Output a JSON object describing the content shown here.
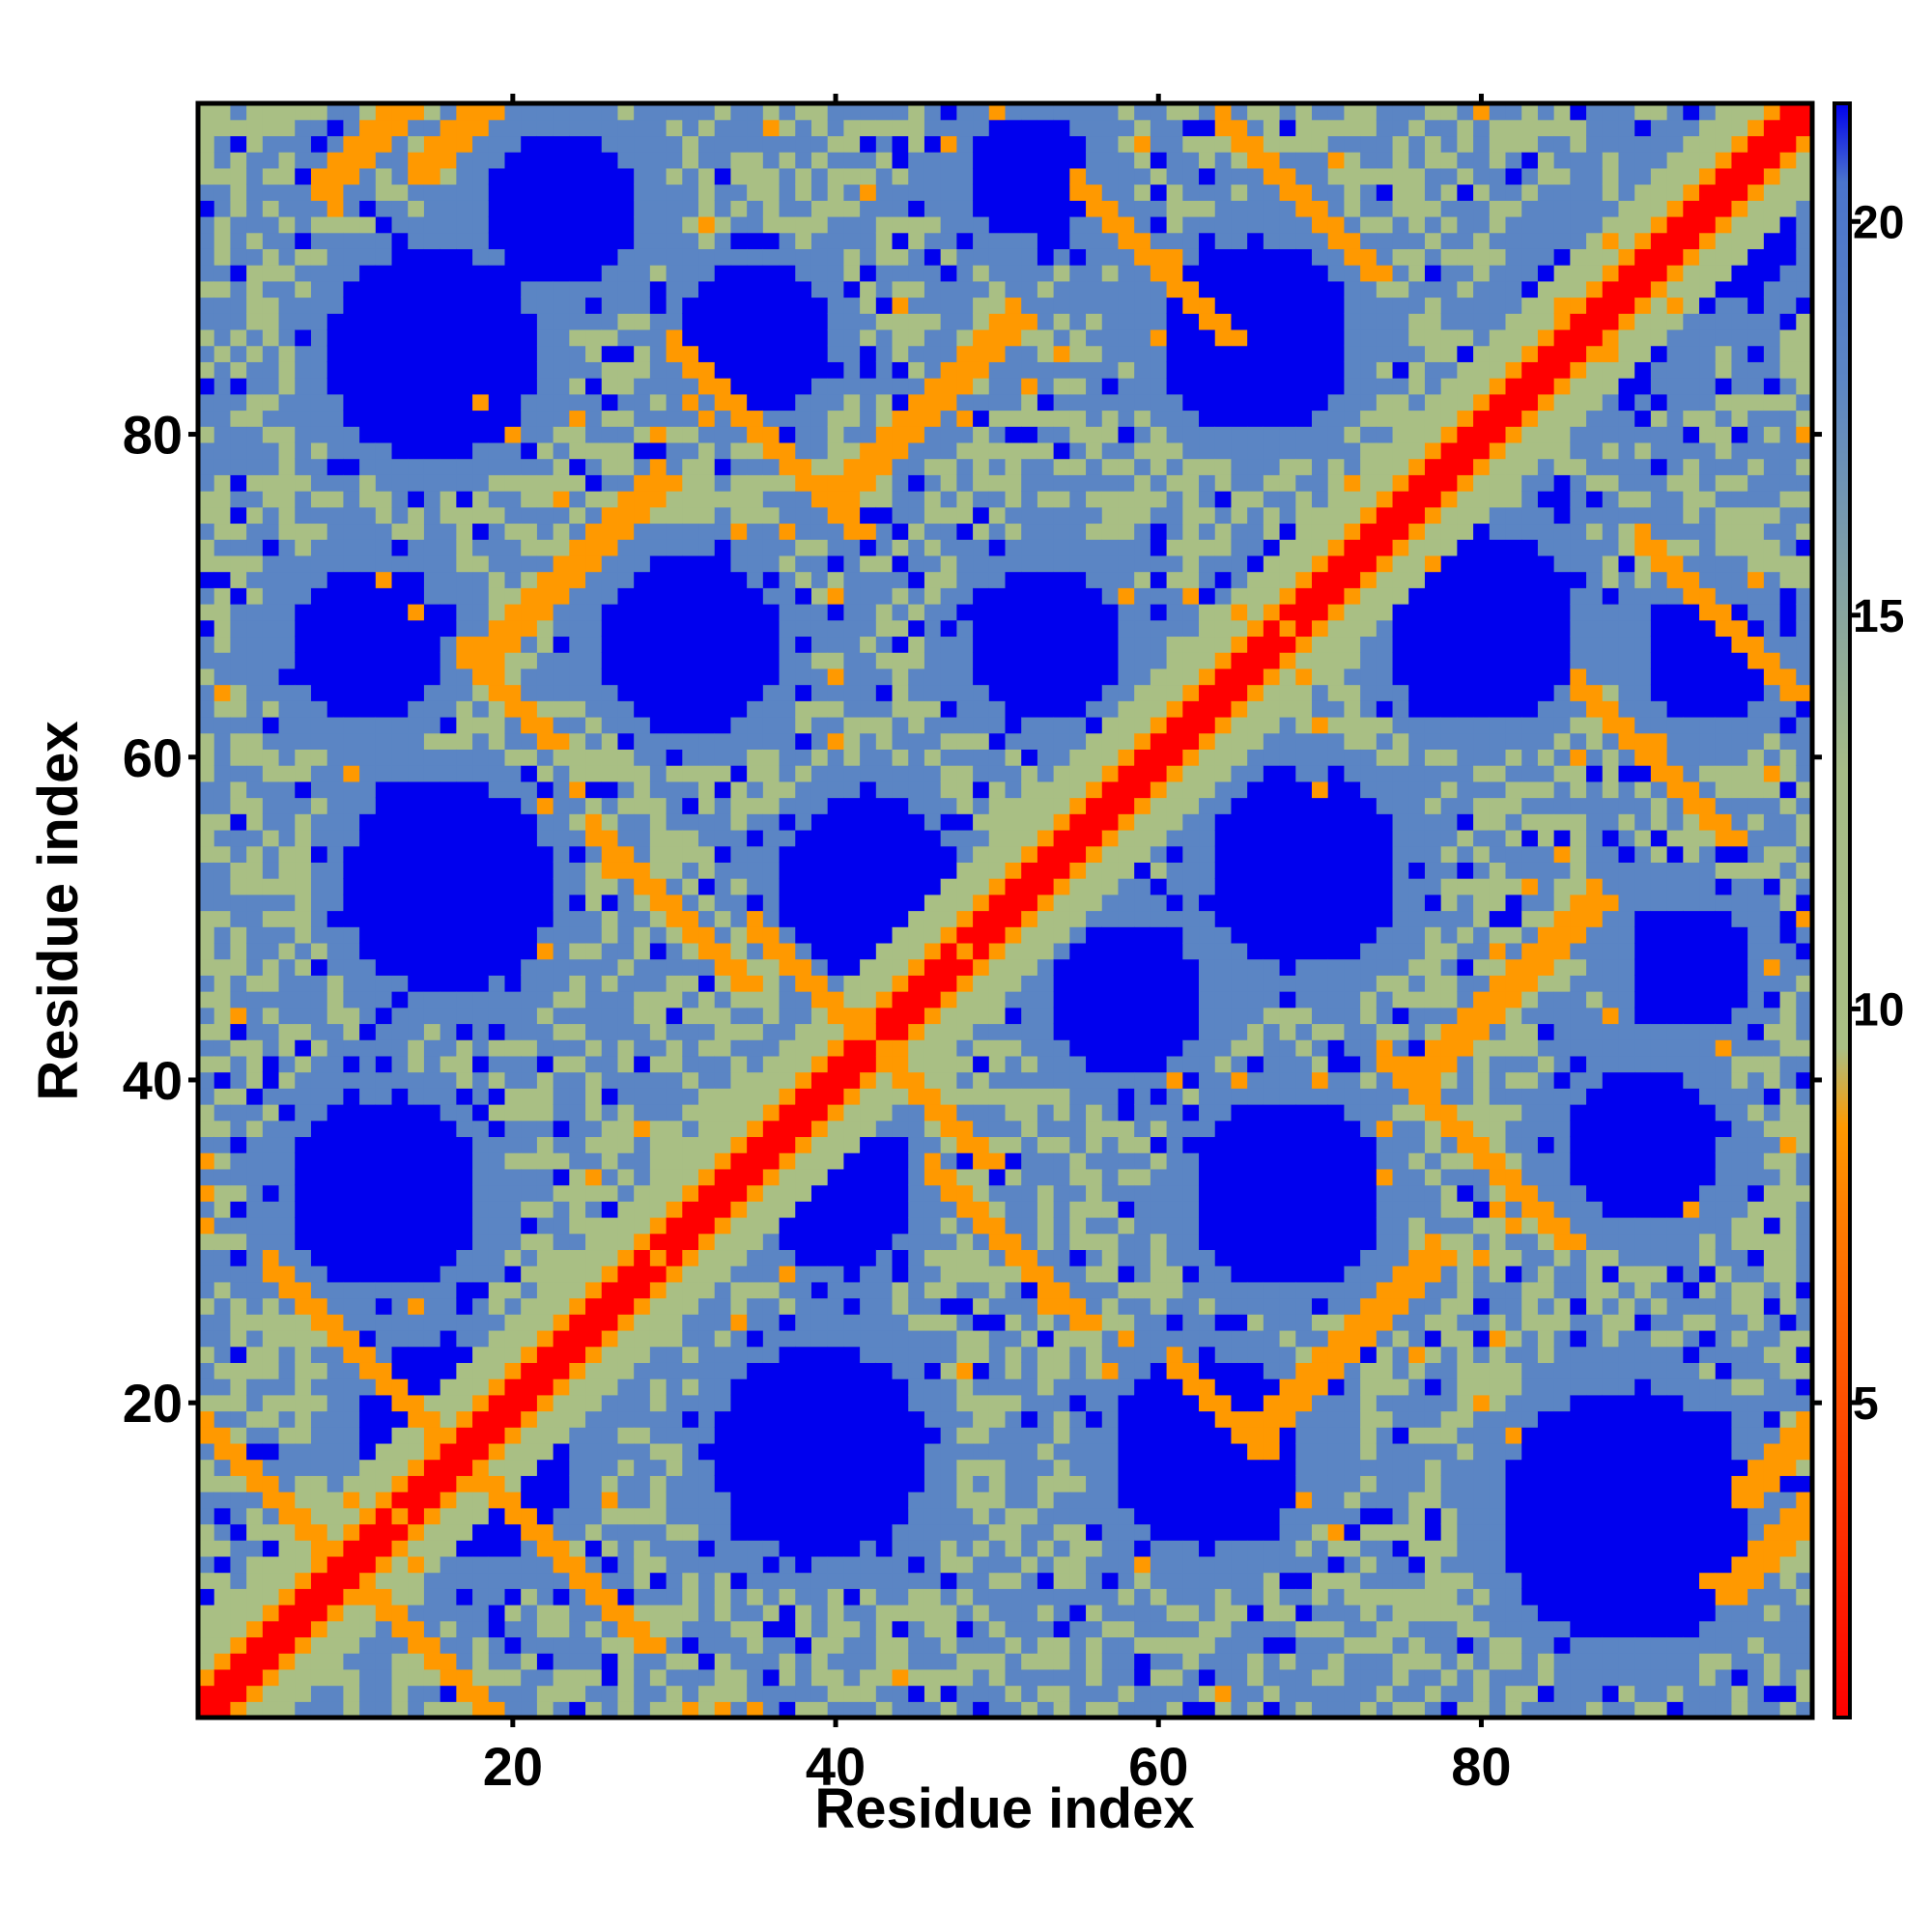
{
  "chart_data": {
    "type": "heatmap",
    "title": "",
    "xlabel": "Residue index",
    "ylabel": "Residue index",
    "n_residues": 100,
    "xlim": [
      1,
      100
    ],
    "ylim": [
      1,
      100
    ],
    "x_ticks": [
      20,
      40,
      60,
      80
    ],
    "y_ticks": [
      20,
      40,
      60,
      80
    ],
    "colorbar": {
      "ticks": [
        5,
        10,
        15,
        20
      ],
      "range": [
        1,
        21.5
      ],
      "colors": {
        "contact": "#ff0000",
        "near": "#ff9900",
        "mid": "#a9bf84",
        "far": "#5b85c4",
        "beyond": "#0000ee"
      },
      "stops": [
        {
          "value": 1,
          "color": "#ff0000"
        },
        {
          "value": 7.5,
          "color": "#ff8000"
        },
        {
          "value": 8.5,
          "color": "#ff9900"
        },
        {
          "value": 9.5,
          "color": "#a9bf84"
        },
        {
          "value": 13,
          "color": "#a6bc86"
        },
        {
          "value": 18,
          "color": "#5b85c4"
        },
        {
          "value": 20.5,
          "color": "#4a74cc"
        },
        {
          "value": 21.5,
          "color": "#0000ee"
        }
      ]
    },
    "symmetric": true,
    "grid": false,
    "secondary_structure_contacts": [
      {
        "i": 1,
        "j": 18,
        "slope": -1,
        "len": 10
      },
      {
        "i": 5,
        "j": 28,
        "slope": -1,
        "len": 14
      },
      {
        "i": 8,
        "j": 95,
        "slope": 1,
        "len": 8
      },
      {
        "i": 14,
        "j": 96,
        "slope": 1,
        "len": 6
      },
      {
        "i": 17,
        "j": 66,
        "slope": -1,
        "len": 6
      },
      {
        "i": 18,
        "j": 66,
        "slope": 1,
        "len": 12
      },
      {
        "i": 25,
        "j": 55,
        "slope": -1,
        "len": 10
      },
      {
        "i": 30,
        "j": 85,
        "slope": -1,
        "len": 12
      },
      {
        "i": 35,
        "j": 49,
        "slope": -1,
        "len": 8
      },
      {
        "i": 40,
        "j": 76,
        "slope": 1,
        "len": 12
      },
      {
        "i": 55,
        "j": 95,
        "slope": -1,
        "len": 10
      },
      {
        "i": 64,
        "j": 99,
        "slope": -1,
        "len": 10
      }
    ]
  }
}
